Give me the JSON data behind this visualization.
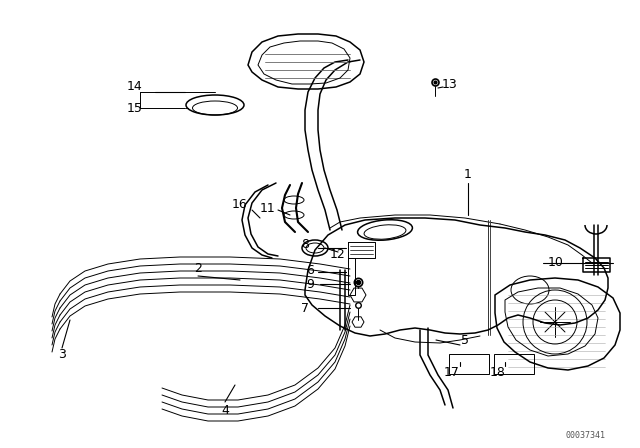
{
  "bg_color": "#ffffff",
  "line_color": "#000000",
  "diagram_ref": "00037341",
  "fig_w": 6.4,
  "fig_h": 4.48,
  "dpi": 100
}
